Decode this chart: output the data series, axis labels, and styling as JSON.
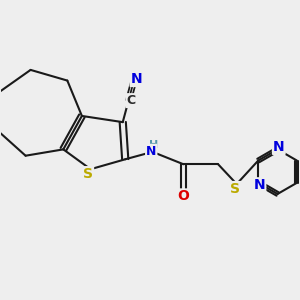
{
  "background_color": "#eeeeee",
  "atom_colors": {
    "C": "#2a2a2a",
    "N_dark": "#0000dd",
    "N_light": "#0000cc",
    "O": "#dd0000",
    "S": "#bbaa00",
    "H": "#5599aa"
  },
  "bond_color": "#1a1a1a",
  "bond_width": 1.5,
  "figsize": [
    3.0,
    3.0
  ],
  "dpi": 100,
  "xlim": [
    -1.1,
    1.3
  ],
  "ylim": [
    -0.7,
    0.85
  ]
}
